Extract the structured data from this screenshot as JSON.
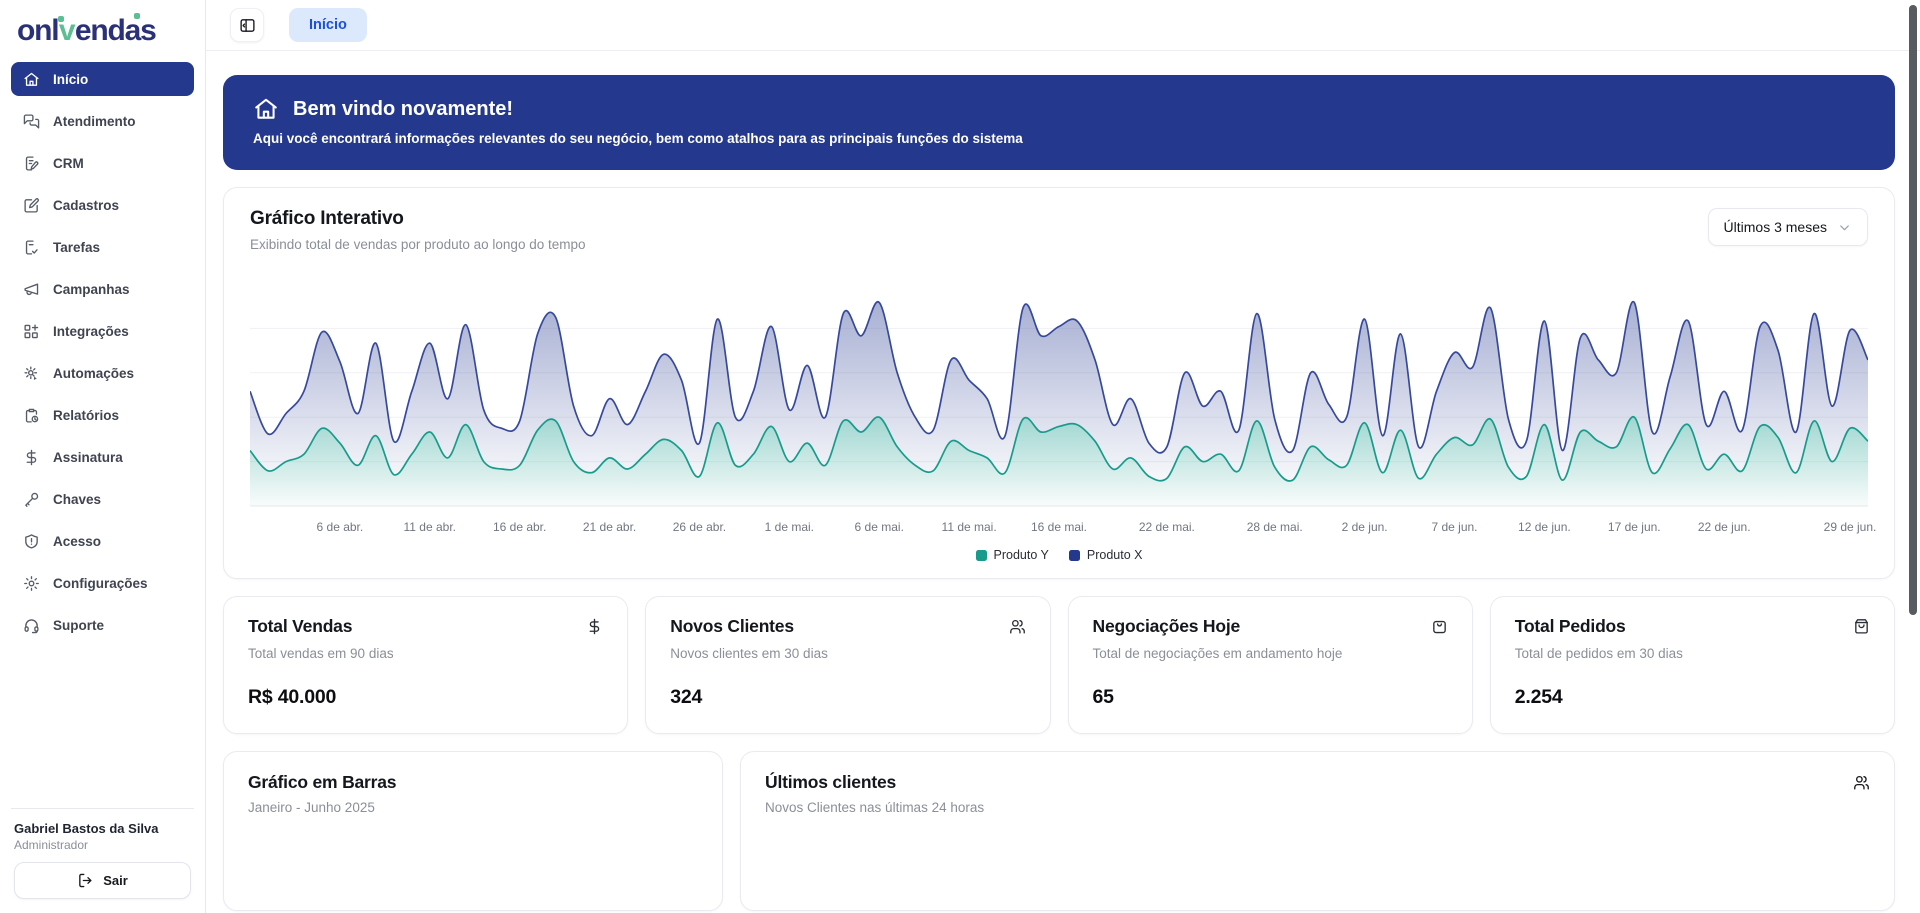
{
  "brand": {
    "name": "onlvendas",
    "prefix": "onl",
    "accent": "v",
    "suffix_1": "end",
    "suffix_a": "a",
    "suffix_2": "s"
  },
  "topbar": {
    "tab": "Início",
    "toggle_icon": "panel-left"
  },
  "sidebar": {
    "items": [
      {
        "slug": "inicio",
        "label": "Início",
        "icon": "home",
        "active": true
      },
      {
        "slug": "atendimento",
        "label": "Atendimento",
        "icon": "chat",
        "active": false
      },
      {
        "slug": "crm",
        "label": "CRM",
        "icon": "clipboard-pen",
        "active": false
      },
      {
        "slug": "cadastros",
        "label": "Cadastros",
        "icon": "square-pen",
        "active": false
      },
      {
        "slug": "tarefas",
        "label": "Tarefas",
        "icon": "file-check",
        "active": false
      },
      {
        "slug": "campanhas",
        "label": "Campanhas",
        "icon": "megaphone",
        "active": false
      },
      {
        "slug": "integracoes",
        "label": "Integrações",
        "icon": "blocks-plus",
        "active": false
      },
      {
        "slug": "automacoes",
        "label": "Automações",
        "icon": "gear-play",
        "active": false
      },
      {
        "slug": "relatorios",
        "label": "Relatórios",
        "icon": "clipboard-clock",
        "active": false
      },
      {
        "slug": "assinatura",
        "label": "Assinatura",
        "icon": "dollar",
        "active": false
      },
      {
        "slug": "chaves",
        "label": "Chaves",
        "icon": "key",
        "active": false
      },
      {
        "slug": "acesso",
        "label": "Acesso",
        "icon": "shield-alert",
        "active": false
      },
      {
        "slug": "configuracoes",
        "label": "Configurações",
        "icon": "gear",
        "active": false
      },
      {
        "slug": "suporte",
        "label": "Suporte",
        "icon": "headset",
        "active": false
      }
    ],
    "user": {
      "name": "Gabriel Bastos da Silva",
      "role": "Administrador"
    },
    "logout_label": "Sair",
    "logout_icon": "logout"
  },
  "banner": {
    "icon": "home",
    "title": "Bem vindo novamente!",
    "subtitle": "Aqui você encontrará informações relevantes do seu negócio, bem como atalhos para as principais funções do sistema"
  },
  "interactive_chart": {
    "title": "Gráfico Interativo",
    "subtitle": "Exibindo total de vendas por produto ao longo do tempo",
    "range_selector": "Últimos 3 meses",
    "range_chevron_icon": "chevron-down"
  },
  "chart_data": {
    "type": "area",
    "stacked": true,
    "points": 91,
    "x_range_label": "6 de abr. — 29 de jun.",
    "x_tick_labels": [
      "6 de abr.",
      "11 de abr.",
      "16 de abr.",
      "21 de abr.",
      "26 de abr.",
      "1 de mai.",
      "6 de mai.",
      "11 de mai.",
      "16 de mai.",
      "22 de mai.",
      "28 de mai.",
      "2 de jun.",
      "7 de jun.",
      "12 de jun.",
      "17 de jun.",
      "22 de jun.",
      "29 de jun."
    ],
    "x_tick_indices": [
      5,
      10,
      15,
      20,
      25,
      30,
      35,
      40,
      45,
      51,
      57,
      62,
      67,
      72,
      77,
      82,
      89
    ],
    "ylim": [
      0,
      600
    ],
    "grid": true,
    "legend_position": "bottom-center",
    "legend": [
      {
        "name": "Produto Y",
        "color": "#199b8c"
      },
      {
        "name": "Produto X",
        "color": "#24388d"
      }
    ],
    "series": [
      {
        "name": "Produto Y",
        "line_color": "#199b8c",
        "fill_color": "#1a9e8f",
        "values": [
          150,
          95,
          120,
          140,
          210,
          170,
          110,
          190,
          85,
          140,
          200,
          130,
          220,
          120,
          100,
          110,
          205,
          230,
          120,
          90,
          130,
          100,
          140,
          180,
          150,
          80,
          225,
          110,
          140,
          215,
          120,
          170,
          110,
          230,
          200,
          240,
          160,
          110,
          95,
          175,
          150,
          130,
          90,
          235,
          200,
          215,
          220,
          175,
          100,
          130,
          80,
          75,
          160,
          120,
          140,
          95,
          230,
          105,
          70,
          160,
          125,
          110,
          225,
          90,
          205,
          75,
          140,
          185,
          165,
          235,
          105,
          80,
          220,
          70,
          200,
          175,
          160,
          240,
          90,
          155,
          220,
          100,
          140,
          95,
          215,
          185,
          90,
          230,
          120,
          210,
          175
        ]
      },
      {
        "name": "Produto X",
        "line_color": "#37499b",
        "fill_color": "#3d4f9e",
        "values": [
          160,
          100,
          130,
          170,
          260,
          220,
          140,
          250,
          90,
          170,
          240,
          160,
          270,
          140,
          110,
          120,
          260,
          280,
          150,
          100,
          160,
          120,
          170,
          230,
          190,
          90,
          280,
          130,
          170,
          270,
          140,
          210,
          130,
          290,
          260,
          310,
          200,
          130,
          110,
          220,
          190,
          160,
          100,
          300,
          260,
          270,
          280,
          220,
          120,
          160,
          90,
          85,
          200,
          150,
          170,
          110,
          290,
          130,
          80,
          200,
          150,
          130,
          280,
          100,
          260,
          85,
          170,
          230,
          210,
          300,
          130,
          95,
          280,
          80,
          255,
          220,
          200,
          310,
          110,
          195,
          280,
          120,
          170,
          110,
          270,
          235,
          110,
          290,
          150,
          265,
          220
        ]
      }
    ]
  },
  "stats": [
    {
      "title": "Total Vendas",
      "subtitle": "Total vendas em 90 dias",
      "value": "R$ 40.000",
      "icon": "dollar"
    },
    {
      "title": "Novos Clientes",
      "subtitle": "Novos clientes em 30 dias",
      "value": "324",
      "icon": "users"
    },
    {
      "title": "Negociações Hoje",
      "subtitle": "Total de negociações em andamento hoje",
      "value": "65",
      "icon": "bag"
    },
    {
      "title": "Total Pedidos",
      "subtitle": "Total de pedidos em 30 dias",
      "value": "2.254",
      "icon": "shopping-bag"
    }
  ],
  "bottom_cards": [
    {
      "title": "Gráfico em Barras",
      "subtitle": "Janeiro - Junho 2025"
    },
    {
      "title": "Últimos clientes",
      "subtitle": "Novos Clientes nas últimas 24 horas",
      "icon": "users"
    }
  ],
  "colors": {
    "navy": "#24388d",
    "logo_navy": "#2a3178",
    "accent_green": "#5cbf93",
    "teal_series": "#199b8c",
    "navy_series": "#3d4f9e",
    "tab_bg": "#dce9fd",
    "tab_text": "#1d4fd8",
    "muted_text": "#8a8f98",
    "border": "#e9ebef"
  }
}
